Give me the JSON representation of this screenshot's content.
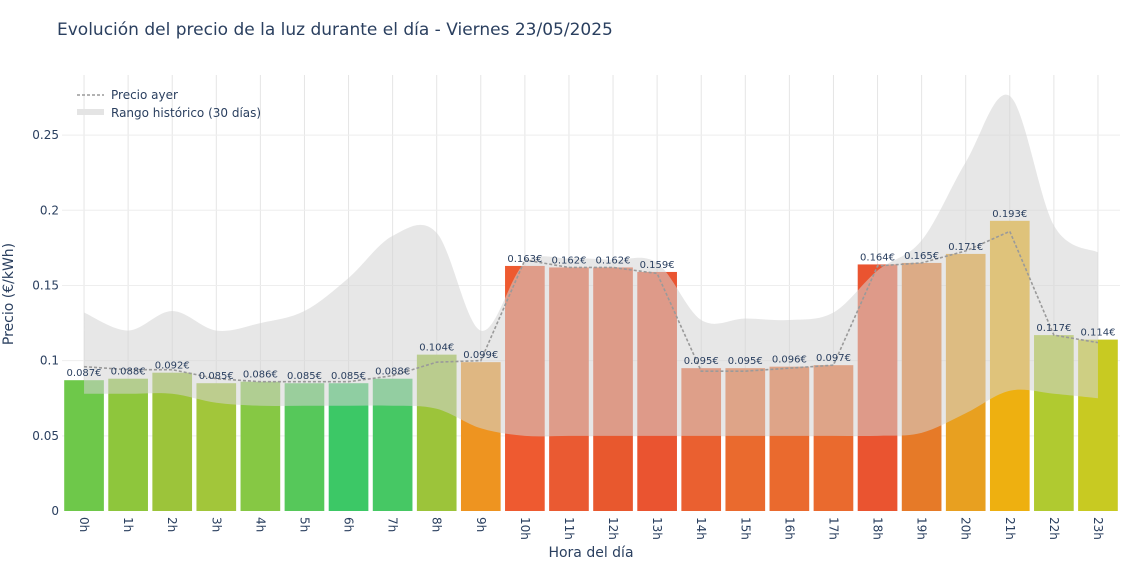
{
  "chart_data": {
    "type": "bar",
    "title": "Evolución del precio de la luz durante el día - Viernes 23/05/2025",
    "xlabel": "Hora del día",
    "ylabel": "Precio (€/kWh)",
    "ylim": [
      0,
      0.29
    ],
    "yticks": [
      0,
      0.05,
      0.1,
      0.15,
      0.2,
      0.25
    ],
    "ytick_labels": [
      "0",
      "0.05",
      "0.1",
      "0.15",
      "0.2",
      "0.25"
    ],
    "grid": true,
    "legend_position": "top-left",
    "categories": [
      "0h",
      "1h",
      "2h",
      "3h",
      "4h",
      "5h",
      "6h",
      "7h",
      "8h",
      "9h",
      "10h",
      "11h",
      "12h",
      "13h",
      "14h",
      "15h",
      "16h",
      "17h",
      "18h",
      "19h",
      "20h",
      "21h",
      "22h",
      "23h"
    ],
    "values": [
      0.087,
      0.088,
      0.092,
      0.085,
      0.086,
      0.085,
      0.085,
      0.088,
      0.104,
      0.099,
      0.163,
      0.162,
      0.162,
      0.159,
      0.095,
      0.095,
      0.096,
      0.097,
      0.164,
      0.165,
      0.171,
      0.193,
      0.117,
      0.114
    ],
    "value_labels": [
      "0.087€",
      "0.088€",
      "0.092€",
      "0.085€",
      "0.086€",
      "0.085€",
      "0.085€",
      "0.088€",
      "0.104€",
      "0.099€",
      "0.163€",
      "0.162€",
      "0.162€",
      "0.159€",
      "0.095€",
      "0.095€",
      "0.096€",
      "0.097€",
      "0.164€",
      "0.165€",
      "0.171€",
      "0.193€",
      "0.117€",
      "0.114€"
    ],
    "bar_colors": [
      "#6ec84a",
      "#8ec63c",
      "#9cc43a",
      "#a2c63a",
      "#86c844",
      "#56c85a",
      "#3cc866",
      "#46c864",
      "#9cc43a",
      "#ee9420",
      "#ee5a30",
      "#ea5a32",
      "#e8582e",
      "#ea5430",
      "#ea6030",
      "#ea6a2e",
      "#ea6a2e",
      "#ea6a2e",
      "#ea5430",
      "#e67a28",
      "#e8a020",
      "#eeb010",
      "#b0ca30",
      "#c8ca22"
    ],
    "yesterday_series": {
      "name": "Precio ayer",
      "values": [
        0.096,
        0.094,
        0.094,
        0.088,
        0.086,
        0.086,
        0.086,
        0.09,
        0.099,
        0.1,
        0.167,
        0.162,
        0.162,
        0.158,
        0.093,
        0.093,
        0.095,
        0.097,
        0.163,
        0.165,
        0.173,
        0.186,
        0.117,
        0.112
      ]
    },
    "historical_range": {
      "name": "Rango histórico (30 días)",
      "upper": [
        0.132,
        0.12,
        0.133,
        0.12,
        0.125,
        0.133,
        0.155,
        0.183,
        0.185,
        0.12,
        0.165,
        0.168,
        0.167,
        0.165,
        0.127,
        0.128,
        0.127,
        0.132,
        0.16,
        0.18,
        0.232,
        0.276,
        0.19,
        0.172
      ],
      "lower": [
        0.078,
        0.078,
        0.078,
        0.072,
        0.07,
        0.07,
        0.07,
        0.07,
        0.068,
        0.055,
        0.05,
        0.05,
        0.05,
        0.05,
        0.05,
        0.05,
        0.05,
        0.05,
        0.05,
        0.052,
        0.065,
        0.08,
        0.078,
        0.075
      ]
    },
    "colors": {
      "grid": "#e5e5e5",
      "range_fill": "#d3d3d3",
      "yesterday_line": "#9a9a9a",
      "text": "#2a3f5f"
    }
  }
}
